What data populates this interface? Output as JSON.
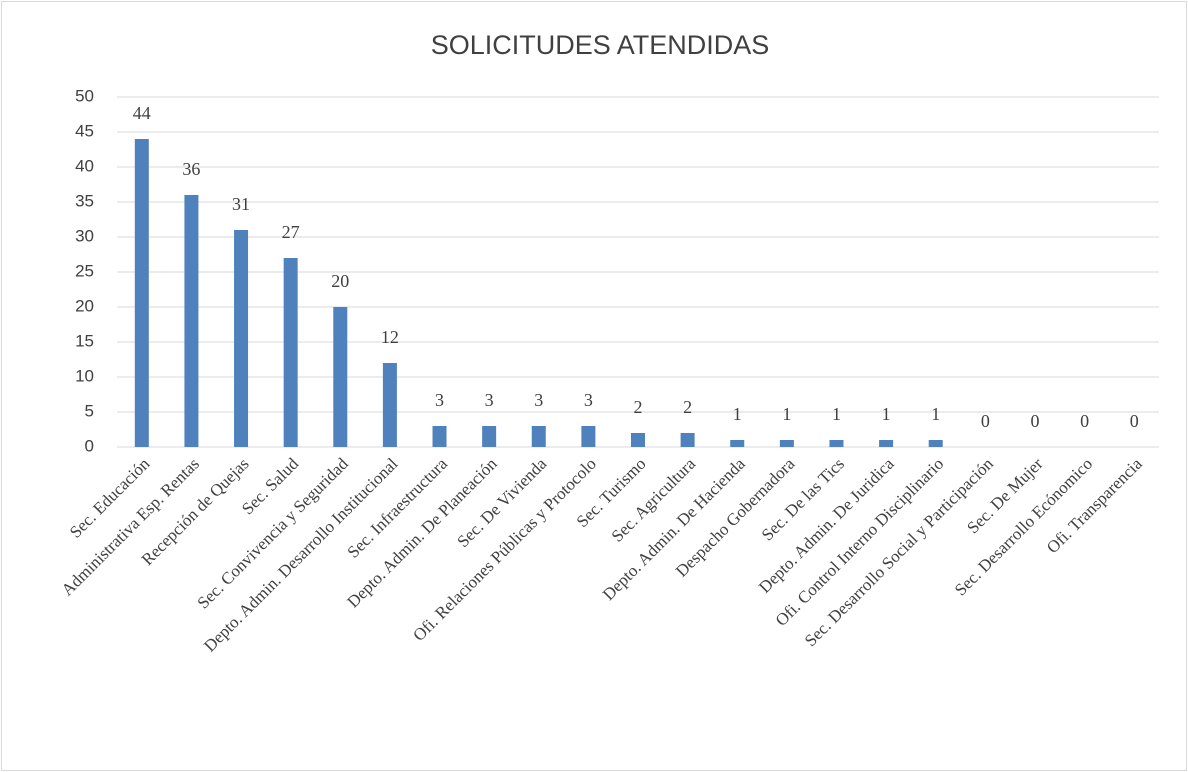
{
  "chart_data": {
    "type": "bar",
    "title": "SOLICITUDES ATENDIDAS",
    "categories": [
      "Sec. Educación",
      "Administrativa Esp. Rentas",
      "Recepción de Quejas",
      "Sec. Salud",
      "Sec. Convivencia y Seguridad",
      "Depto. Admin. Desarrollo Institucional",
      "Sec. Infraestructura",
      "Depto. Admin. De Planeación",
      "Sec. De Vivienda",
      "Ofi. Relaciones Públicas y Protocolo",
      "Sec. Turismo",
      "Sec. Agricultura",
      "Depto. Admin. De Hacienda",
      "Despacho Gobernadora",
      "Sec. De las Tics",
      "Depto. Admin. De Juridica",
      "Ofi. Control Interno Disciplinario",
      "Sec. Desarrollo Social y Participación",
      "Sec. De Mujer",
      "Sec. Desarrollo Ecónomico",
      "Ofi. Transparencia"
    ],
    "values": [
      44,
      36,
      31,
      27,
      20,
      12,
      3,
      3,
      3,
      3,
      2,
      2,
      1,
      1,
      1,
      1,
      1,
      0,
      0,
      0,
      0
    ],
    "color": "#4f81bd",
    "ylim": [
      0,
      50
    ],
    "yticks": [
      0,
      5,
      10,
      15,
      20,
      25,
      30,
      35,
      40,
      45,
      50
    ],
    "grid": true
  }
}
